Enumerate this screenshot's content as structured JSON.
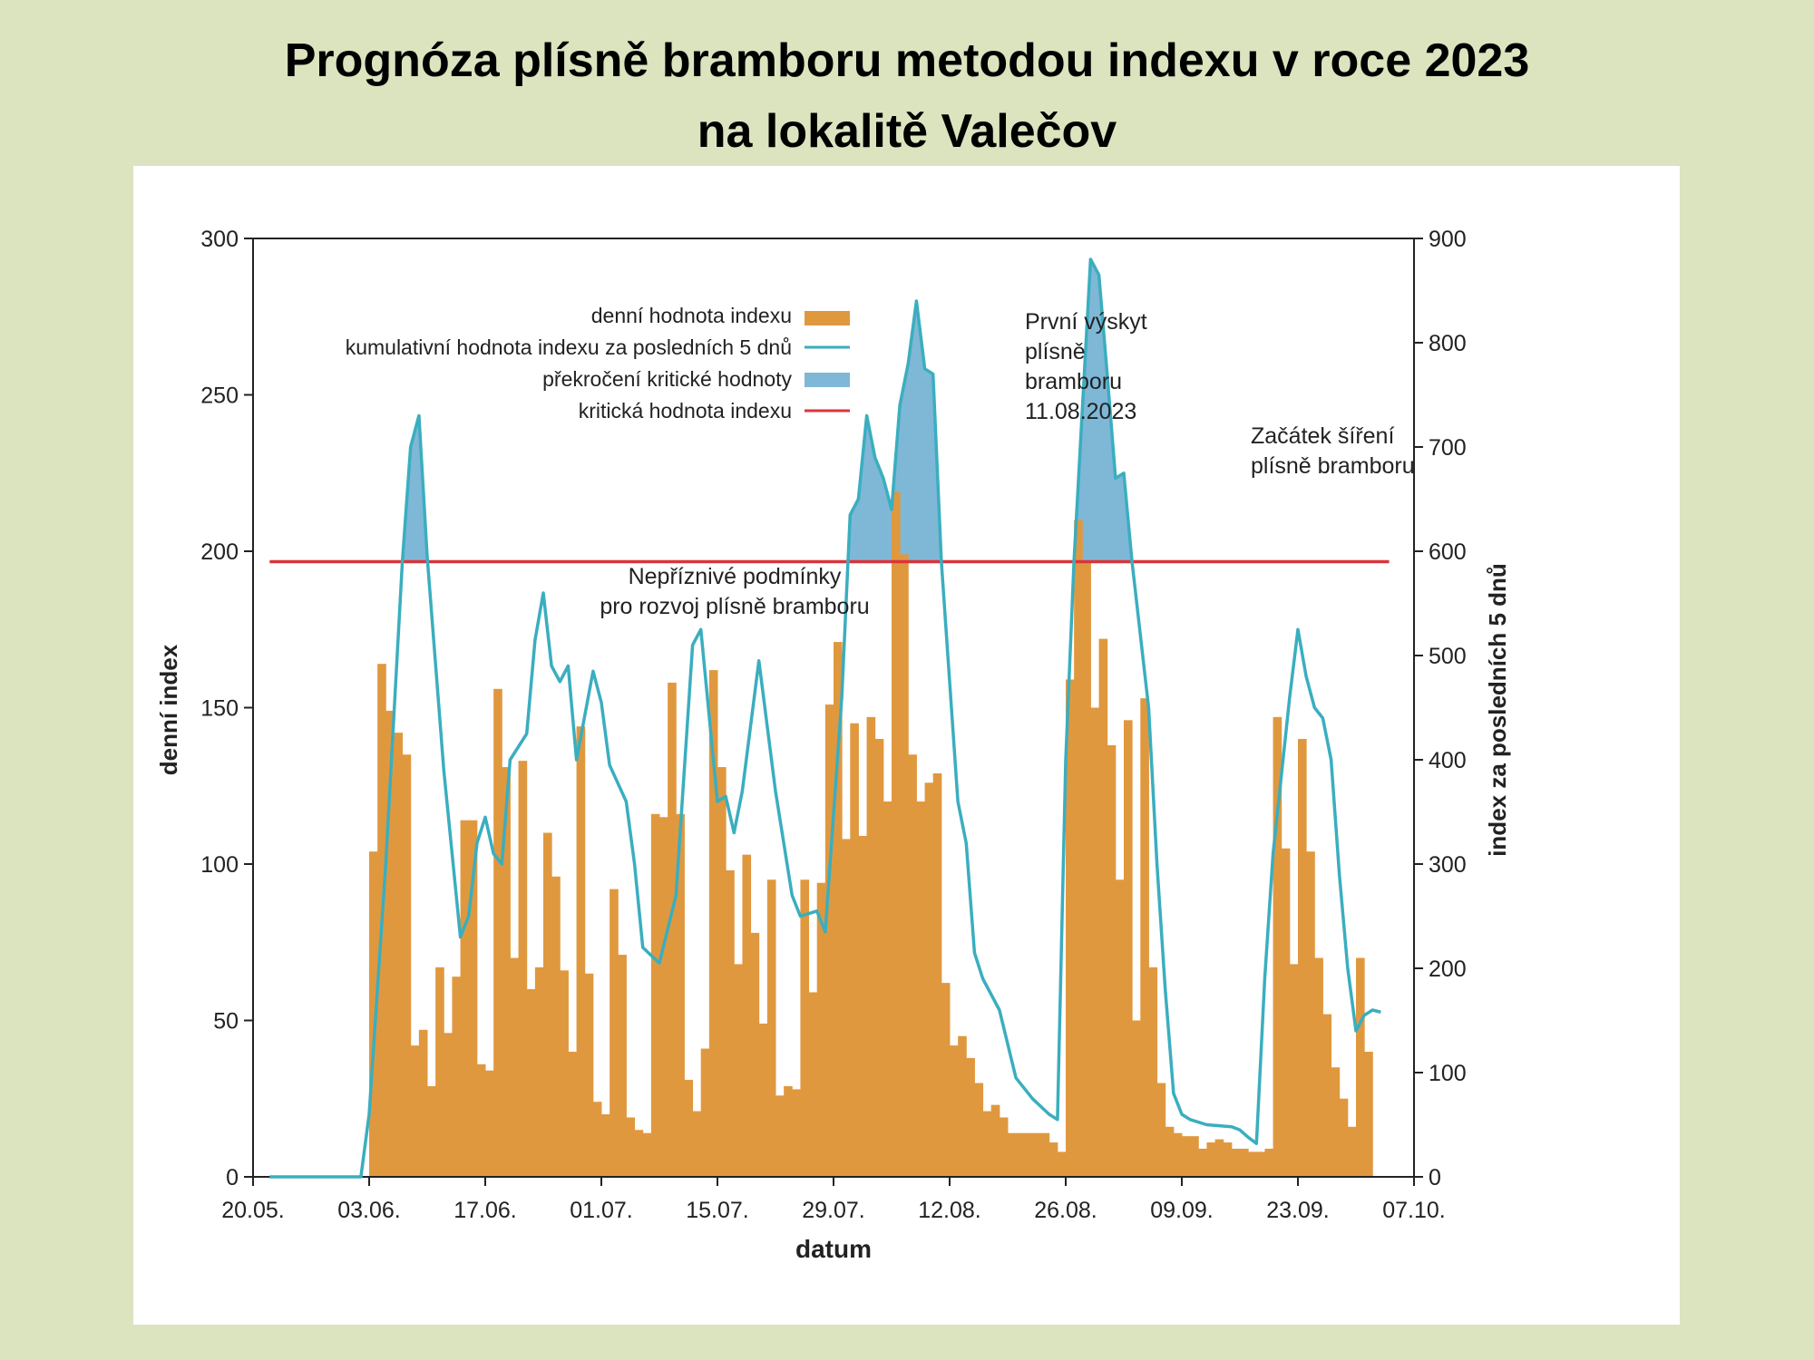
{
  "title": {
    "line1": "Prognóza plísně bramboru metodou indexu v roce 2023",
    "line2": "na lokalitě Valečov"
  },
  "colors": {
    "background": "#dbe4bf",
    "bars": "#e0983f",
    "line": "#3aaebf",
    "exceed_fill": "#7fb7d7",
    "critical": "#d9343a"
  },
  "chart_data": {
    "type": "bar",
    "xlabel": "datum",
    "ylabel": "denní index",
    "y2label": "index za posledních 5 dnů",
    "xlim": [
      "2023-05-20",
      "2023-10-07"
    ],
    "ylim": [
      0,
      300
    ],
    "y2lim": [
      0,
      900
    ],
    "x_ticks": [
      "20.05.",
      "03.06.",
      "17.06.",
      "01.07.",
      "15.07.",
      "29.07.",
      "12.08.",
      "26.08.",
      "09.09.",
      "23.09.",
      "07.10."
    ],
    "y_ticks": [
      "0",
      "50",
      "100",
      "150",
      "200",
      "250",
      "300"
    ],
    "y2_ticks": [
      "0",
      "100",
      "200",
      "300",
      "400",
      "500",
      "600",
      "700",
      "800",
      "900"
    ],
    "grid": false,
    "legend": {
      "placement": "top-left",
      "entries": [
        {
          "label": "denní hodnota indexu",
          "kind": "bar"
        },
        {
          "label": "kumulativní hodnota indexu za posledních 5 dnů",
          "kind": "line"
        },
        {
          "label": "překročení kritické hodnoty",
          "kind": "area"
        },
        {
          "label": "kritická hodnota indexu",
          "kind": "critical"
        }
      ]
    },
    "critical_value": 590,
    "annotations": {
      "first_occurrence": [
        "První výskyt",
        "plísně",
        "bramboru",
        "11.08.2023"
      ],
      "spread_start": [
        "Začátek šíření",
        "plísně bramboru"
      ],
      "unfavourable": [
        "Nepříznivé podmínky",
        "pro rozvoj plísně bramboru"
      ]
    },
    "series": [
      {
        "name": "denní hodnota indexu",
        "axis": "left",
        "start_date": "2023-06-03",
        "values": [
          104,
          164,
          149,
          142,
          135,
          42,
          47,
          29,
          67,
          46,
          64,
          114,
          114,
          36,
          34,
          156,
          131,
          70,
          133,
          60,
          67,
          110,
          96,
          66,
          40,
          144,
          65,
          24,
          20,
          92,
          71,
          19,
          15,
          14,
          116,
          115,
          158,
          116,
          31,
          21,
          41,
          162,
          131,
          98,
          68,
          103,
          78,
          49,
          95,
          26,
          29,
          28,
          95,
          59,
          94,
          151,
          171,
          108,
          145,
          109,
          147,
          140,
          120,
          219,
          199,
          135,
          120,
          126,
          129,
          62,
          42,
          45,
          38,
          30,
          21,
          23,
          19,
          14,
          14,
          14,
          14,
          14,
          11,
          8,
          159,
          210,
          197,
          150,
          172,
          138,
          95,
          146,
          50,
          153,
          67,
          30,
          16,
          14,
          13,
          13,
          9,
          11,
          12,
          11,
          9,
          9,
          8,
          8,
          9,
          147,
          105,
          68,
          140,
          104,
          70,
          52,
          35,
          25,
          16,
          70,
          40
        ]
      },
      {
        "name": "kumulativní hodnota indexu za posledních 5 dnů",
        "axis": "right",
        "start_date": "2023-05-22",
        "points": [
          [
            "2023-05-22",
            0
          ],
          [
            "2023-06-02",
            0
          ],
          [
            "2023-06-03",
            60
          ],
          [
            "2023-06-05",
            300
          ],
          [
            "2023-06-07",
            590
          ],
          [
            "2023-06-08",
            700
          ],
          [
            "2023-06-09",
            730
          ],
          [
            "2023-06-10",
            595
          ],
          [
            "2023-06-12",
            390
          ],
          [
            "2023-06-14",
            230
          ],
          [
            "2023-06-15",
            250
          ],
          [
            "2023-06-16",
            320
          ],
          [
            "2023-06-17",
            345
          ],
          [
            "2023-06-18",
            310
          ],
          [
            "2023-06-19",
            300
          ],
          [
            "2023-06-20",
            400
          ],
          [
            "2023-06-22",
            425
          ],
          [
            "2023-06-23",
            515
          ],
          [
            "2023-06-24",
            560
          ],
          [
            "2023-06-25",
            490
          ],
          [
            "2023-06-26",
            475
          ],
          [
            "2023-06-27",
            490
          ],
          [
            "2023-06-28",
            400
          ],
          [
            "2023-06-30",
            485
          ],
          [
            "2023-07-01",
            455
          ],
          [
            "2023-07-02",
            395
          ],
          [
            "2023-07-04",
            360
          ],
          [
            "2023-07-05",
            300
          ],
          [
            "2023-07-06",
            220
          ],
          [
            "2023-07-08",
            205
          ],
          [
            "2023-07-10",
            270
          ],
          [
            "2023-07-12",
            510
          ],
          [
            "2023-07-13",
            525
          ],
          [
            "2023-07-15",
            360
          ],
          [
            "2023-07-16",
            365
          ],
          [
            "2023-07-17",
            330
          ],
          [
            "2023-07-18",
            370
          ],
          [
            "2023-07-20",
            495
          ],
          [
            "2023-07-22",
            370
          ],
          [
            "2023-07-24",
            270
          ],
          [
            "2023-07-25",
            250
          ],
          [
            "2023-07-27",
            255
          ],
          [
            "2023-07-28",
            235
          ],
          [
            "2023-07-30",
            460
          ],
          [
            "2023-07-31",
            635
          ],
          [
            "2023-08-01",
            650
          ],
          [
            "2023-08-02",
            730
          ],
          [
            "2023-08-03",
            690
          ],
          [
            "2023-08-04",
            670
          ],
          [
            "2023-08-05",
            640
          ],
          [
            "2023-08-06",
            740
          ],
          [
            "2023-08-07",
            780
          ],
          [
            "2023-08-08",
            840
          ],
          [
            "2023-08-09",
            775
          ],
          [
            "2023-08-10",
            770
          ],
          [
            "2023-08-11",
            590
          ],
          [
            "2023-08-13",
            360
          ],
          [
            "2023-08-14",
            320
          ],
          [
            "2023-08-15",
            215
          ],
          [
            "2023-08-16",
            190
          ],
          [
            "2023-08-18",
            160
          ],
          [
            "2023-08-20",
            95
          ],
          [
            "2023-08-22",
            75
          ],
          [
            "2023-08-24",
            60
          ],
          [
            "2023-08-25",
            55
          ],
          [
            "2023-08-26",
            400
          ],
          [
            "2023-08-27",
            590
          ],
          [
            "2023-08-29",
            880
          ],
          [
            "2023-08-30",
            865
          ],
          [
            "2023-08-31",
            770
          ],
          [
            "2023-09-01",
            670
          ],
          [
            "2023-09-02",
            675
          ],
          [
            "2023-09-03",
            590
          ],
          [
            "2023-09-05",
            450
          ],
          [
            "2023-09-06",
            300
          ],
          [
            "2023-09-07",
            180
          ],
          [
            "2023-09-08",
            80
          ],
          [
            "2023-09-09",
            60
          ],
          [
            "2023-09-10",
            55
          ],
          [
            "2023-09-12",
            50
          ],
          [
            "2023-09-15",
            48
          ],
          [
            "2023-09-16",
            45
          ],
          [
            "2023-09-17",
            38
          ],
          [
            "2023-09-18",
            32
          ],
          [
            "2023-09-19",
            190
          ],
          [
            "2023-09-20",
            310
          ],
          [
            "2023-09-22",
            460
          ],
          [
            "2023-09-23",
            525
          ],
          [
            "2023-09-24",
            480
          ],
          [
            "2023-09-25",
            450
          ],
          [
            "2023-09-26",
            440
          ],
          [
            "2023-09-27",
            400
          ],
          [
            "2023-09-28",
            290
          ],
          [
            "2023-09-29",
            200
          ],
          [
            "2023-09-30",
            140
          ],
          [
            "2023-10-01",
            155
          ],
          [
            "2023-10-02",
            160
          ],
          [
            "2023-10-03",
            158
          ]
        ]
      }
    ]
  }
}
